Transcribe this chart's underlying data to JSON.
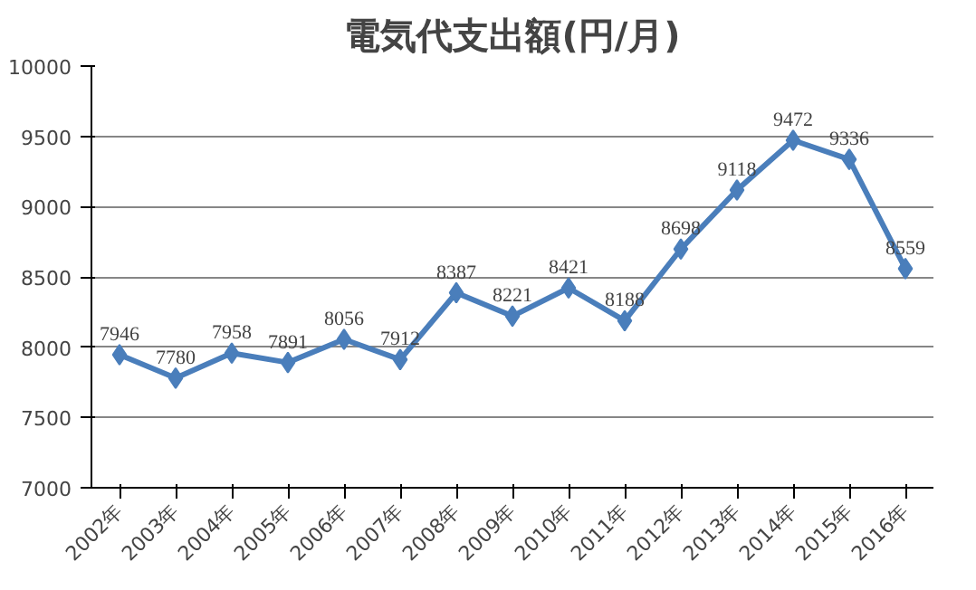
{
  "chart_data": {
    "type": "line",
    "title": "電気代支出額(円/月)",
    "categories": [
      "2002年",
      "2003年",
      "2004年",
      "2005年",
      "2006年",
      "2007年",
      "2008年",
      "2009年",
      "2010年",
      "2011年",
      "2012年",
      "2013年",
      "2014年",
      "2015年",
      "2016年"
    ],
    "series": [
      {
        "color": "#4a7ebb",
        "values": [
          7946,
          7780,
          7958,
          7891,
          8056,
          7912,
          8387,
          8221,
          8421,
          8188,
          8698,
          9118,
          9472,
          9336,
          8559
        ]
      }
    ],
    "ylim": [
      7000,
      10000
    ],
    "yticks": [
      7000,
      7500,
      8000,
      8500,
      9000,
      9500,
      10000
    ],
    "grid": "y",
    "marker": "diamond",
    "line_style": "solid",
    "data_labels": true
  }
}
